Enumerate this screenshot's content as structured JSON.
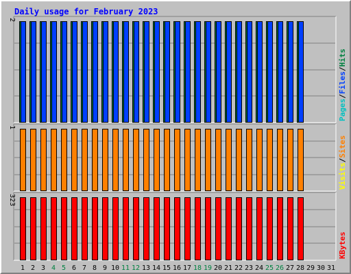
{
  "title": "Daily usage for February 2023",
  "colors": {
    "hits": "#008040",
    "files": "#0040ff",
    "pages": "#00c0c0",
    "visits": "#ffff00",
    "sites": "#ff8000",
    "kbytes": "#ff0000",
    "panel_bg": "#c0c0c0",
    "weekend_label": "#008040",
    "weekday_label": "#000000"
  },
  "chart_data": [
    {
      "type": "bar",
      "legend": [
        {
          "name": "Hits",
          "color": "#008040"
        },
        {
          "name": "Files",
          "color": "#0040ff"
        },
        {
          "name": "Pages",
          "color": "#00c0c0"
        }
      ],
      "ylim": [
        0,
        2
      ],
      "y_max_label": "2",
      "x": [
        1,
        2,
        3,
        4,
        5,
        6,
        7,
        8,
        9,
        10,
        11,
        12,
        13,
        14,
        15,
        16,
        17,
        18,
        19,
        20,
        21,
        22,
        23,
        24,
        25,
        26,
        27,
        28,
        29,
        30,
        31
      ],
      "series": [
        {
          "name": "Hits",
          "values": [
            2,
            2,
            2,
            2,
            2,
            2,
            2,
            2,
            2,
            2,
            2,
            2,
            2,
            2,
            2,
            2,
            2,
            2,
            2,
            2,
            2,
            2,
            2,
            2,
            2,
            2,
            2,
            2,
            null,
            null,
            null
          ]
        },
        {
          "name": "Files",
          "values": [
            2,
            2,
            2,
            2,
            2,
            2,
            2,
            2,
            2,
            2,
            2,
            2,
            2,
            2,
            2,
            2,
            2,
            2,
            2,
            2,
            2,
            2,
            2,
            2,
            2,
            2,
            2,
            2,
            null,
            null,
            null
          ]
        }
      ],
      "grid": true
    },
    {
      "type": "bar",
      "legend": [
        {
          "name": "Sites",
          "color": "#ff8000"
        },
        {
          "name": "Visits",
          "color": "#ffff00"
        }
      ],
      "ylim": [
        0,
        1
      ],
      "y_max_label": "1",
      "x": [
        1,
        2,
        3,
        4,
        5,
        6,
        7,
        8,
        9,
        10,
        11,
        12,
        13,
        14,
        15,
        16,
        17,
        18,
        19,
        20,
        21,
        22,
        23,
        24,
        25,
        26,
        27,
        28,
        29,
        30,
        31
      ],
      "series": [
        {
          "name": "Sites",
          "values": [
            1,
            1,
            1,
            1,
            1,
            1,
            1,
            1,
            1,
            1,
            1,
            1,
            1,
            1,
            1,
            1,
            1,
            1,
            1,
            1,
            1,
            1,
            1,
            1,
            1,
            1,
            1,
            1,
            null,
            null,
            null
          ]
        }
      ],
      "grid": true
    },
    {
      "type": "bar",
      "legend": [
        {
          "name": "KBytes",
          "color": "#ff0000"
        }
      ],
      "ylim": [
        0,
        323
      ],
      "y_max_label": "323",
      "x": [
        1,
        2,
        3,
        4,
        5,
        6,
        7,
        8,
        9,
        10,
        11,
        12,
        13,
        14,
        15,
        16,
        17,
        18,
        19,
        20,
        21,
        22,
        23,
        24,
        25,
        26,
        27,
        28,
        29,
        30,
        31
      ],
      "series": [
        {
          "name": "KBytes",
          "values": [
            323,
            323,
            323,
            323,
            323,
            323,
            323,
            323,
            323,
            323,
            323,
            323,
            323,
            323,
            323,
            323,
            323,
            323,
            323,
            323,
            323,
            323,
            323,
            323,
            323,
            323,
            323,
            323,
            null,
            null,
            null
          ]
        }
      ],
      "grid": true
    }
  ],
  "x_labels": [
    {
      "text": "1",
      "weekend": false
    },
    {
      "text": "2",
      "weekend": false
    },
    {
      "text": "3",
      "weekend": false
    },
    {
      "text": "4",
      "weekend": true
    },
    {
      "text": "5",
      "weekend": true
    },
    {
      "text": "6",
      "weekend": false
    },
    {
      "text": "7",
      "weekend": false
    },
    {
      "text": "8",
      "weekend": false
    },
    {
      "text": "9",
      "weekend": false
    },
    {
      "text": "10",
      "weekend": false
    },
    {
      "text": "11",
      "weekend": true
    },
    {
      "text": "12",
      "weekend": true
    },
    {
      "text": "13",
      "weekend": false
    },
    {
      "text": "14",
      "weekend": false
    },
    {
      "text": "15",
      "weekend": false
    },
    {
      "text": "16",
      "weekend": false
    },
    {
      "text": "17",
      "weekend": false
    },
    {
      "text": "18",
      "weekend": true
    },
    {
      "text": "19",
      "weekend": true
    },
    {
      "text": "20",
      "weekend": false
    },
    {
      "text": "21",
      "weekend": false
    },
    {
      "text": "22",
      "weekend": false
    },
    {
      "text": "23",
      "weekend": false
    },
    {
      "text": "24",
      "weekend": false
    },
    {
      "text": "25",
      "weekend": true
    },
    {
      "text": "26",
      "weekend": true
    },
    {
      "text": "27",
      "weekend": false
    },
    {
      "text": "28",
      "weekend": false
    },
    {
      "text": "29",
      "weekend": false
    },
    {
      "text": "30",
      "weekend": false
    },
    {
      "text": "31",
      "weekend": false
    }
  ],
  "legend_separator": "/"
}
